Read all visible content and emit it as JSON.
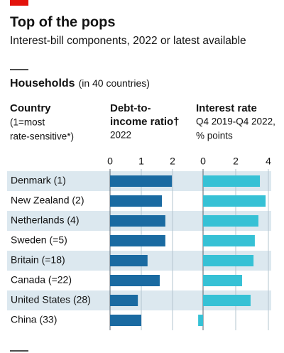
{
  "title": "Top of the pops",
  "subtitle": "Interest-bill components, 2022 or latest available",
  "section": {
    "name": "Households",
    "note": "(in 40 countries)"
  },
  "column_header": {
    "title": "Country",
    "note": [
      "(1=most",
      "rate-sensitive*)"
    ]
  },
  "chart_data": [
    {
      "type": "bar",
      "orientation": "horizontal",
      "title": [
        "Debt-to-",
        "income ratio†"
      ],
      "subtitle": [
        "2022"
      ],
      "categories": [
        "Denmark (1)",
        "New Zealand (2)",
        "Netherlands (4)",
        "Sweden (=5)",
        "Britain (=18)",
        "Canada (=22)",
        "United States (28)",
        "China (33)"
      ],
      "values": [
        1.98,
        1.66,
        1.77,
        1.77,
        1.2,
        1.59,
        0.89,
        1.0
      ],
      "color": "#1a6aa1",
      "xlim": [
        0,
        2.3
      ],
      "xticks": [
        0,
        1,
        2
      ],
      "grid": true
    },
    {
      "type": "bar",
      "orientation": "horizontal",
      "title": [
        "Interest rate"
      ],
      "subtitle": [
        "Q4 2019-Q4 2022,",
        "% points"
      ],
      "values": [
        3.48,
        3.83,
        3.39,
        3.17,
        3.09,
        2.39,
        2.91,
        -0.3
      ],
      "color": "#36c1d5",
      "xlim": [
        -0.3,
        4.1
      ],
      "xticks": [
        0,
        2,
        4
      ],
      "grid": true
    }
  ]
}
